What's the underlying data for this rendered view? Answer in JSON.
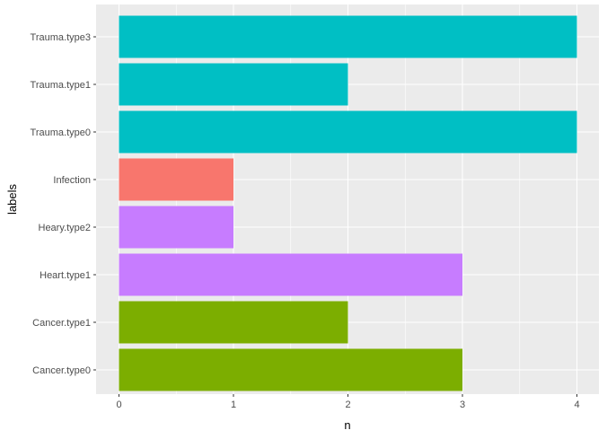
{
  "chart_data": {
    "type": "bar",
    "orientation": "horizontal",
    "xlabel": "n",
    "ylabel": "labels",
    "xlim": [
      0,
      4
    ],
    "x_ticks": [
      0,
      1,
      2,
      3,
      4
    ],
    "grid": true,
    "legend": "none",
    "categories": [
      "Cancer.type0",
      "Cancer.type1",
      "Heart.type1",
      "Heary.type2",
      "Infection",
      "Trauma.type0",
      "Trauma.type1",
      "Trauma.type3"
    ],
    "values": [
      3,
      2,
      3,
      1,
      1,
      4,
      2,
      4
    ],
    "colors": [
      "#7CAE00",
      "#7CAE00",
      "#C77CFF",
      "#C77CFF",
      "#F8766D",
      "#00BFC4",
      "#00BFC4",
      "#00BFC4"
    ],
    "panel_color": "#EBEBEB"
  }
}
